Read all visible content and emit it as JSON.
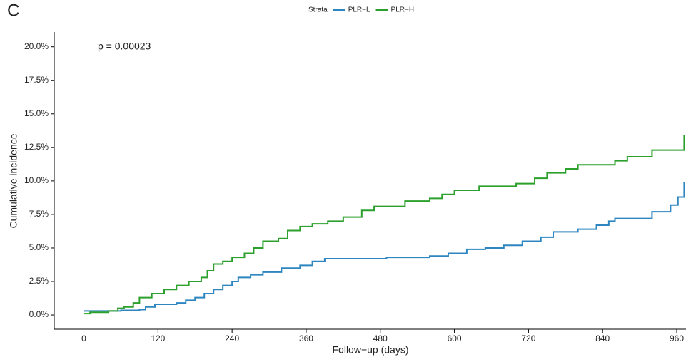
{
  "chart_data": {
    "type": "step",
    "panel_label": "C",
    "legend_title": "Strata",
    "annotation": "p = 0.00023",
    "x_label": "Follow−up (days)",
    "y_label": "Cumulative incidence",
    "xlim": [
      -48,
      975
    ],
    "xticks": [
      0,
      120,
      240,
      360,
      480,
      600,
      720,
      840,
      960
    ],
    "ylim": [
      -1.06,
      21.1
    ],
    "yticks": [
      {
        "value": 0,
        "label": "0.0%"
      },
      {
        "value": 2.5,
        "label": "2.5%"
      },
      {
        "value": 5,
        "label": "5.0%"
      },
      {
        "value": 7.5,
        "label": "7.5%"
      },
      {
        "value": 10,
        "label": "10.0%"
      },
      {
        "value": 12.5,
        "label": "12.5%"
      },
      {
        "value": 15,
        "label": "15.0%"
      },
      {
        "value": 17.5,
        "label": "17.5%"
      },
      {
        "value": 20,
        "label": "20.0%"
      }
    ],
    "grid": false,
    "legend_position": "top",
    "series": [
      {
        "name": "PLR−L",
        "color": "#2e86c1",
        "x": [
          0,
          60,
          90,
          100,
          115,
          150,
          165,
          180,
          195,
          210,
          225,
          240,
          250,
          270,
          290,
          320,
          350,
          370,
          390,
          490,
          560,
          590,
          620,
          650,
          680,
          710,
          740,
          760,
          800,
          830,
          850,
          860,
          920,
          950,
          962,
          972
        ],
        "values": [
          0.3,
          0.35,
          0.4,
          0.6,
          0.8,
          0.9,
          1.1,
          1.3,
          1.6,
          1.9,
          2.2,
          2.5,
          2.8,
          3.0,
          3.2,
          3.5,
          3.7,
          4.0,
          4.2,
          4.3,
          4.4,
          4.6,
          4.9,
          5.0,
          5.2,
          5.5,
          5.8,
          6.2,
          6.4,
          6.7,
          7.0,
          7.2,
          7.7,
          8.2,
          8.8,
          9.9
        ]
      },
      {
        "name": "PLR−H",
        "color": "#2ca02c",
        "x": [
          0,
          10,
          40,
          55,
          65,
          80,
          90,
          110,
          130,
          150,
          170,
          190,
          200,
          210,
          225,
          240,
          260,
          275,
          290,
          315,
          330,
          350,
          370,
          395,
          420,
          450,
          470,
          520,
          560,
          580,
          600,
          640,
          700,
          730,
          750,
          780,
          800,
          860,
          880,
          920,
          972
        ],
        "values": [
          0.1,
          0.2,
          0.3,
          0.5,
          0.6,
          0.9,
          1.3,
          1.6,
          1.9,
          2.2,
          2.5,
          2.8,
          3.3,
          3.8,
          4.0,
          4.3,
          4.6,
          5.0,
          5.5,
          5.7,
          6.3,
          6.6,
          6.8,
          7.0,
          7.3,
          7.8,
          8.1,
          8.5,
          8.7,
          9.0,
          9.3,
          9.6,
          9.8,
          10.2,
          10.6,
          10.9,
          11.2,
          11.5,
          11.8,
          12.3,
          13.4
        ]
      }
    ]
  }
}
